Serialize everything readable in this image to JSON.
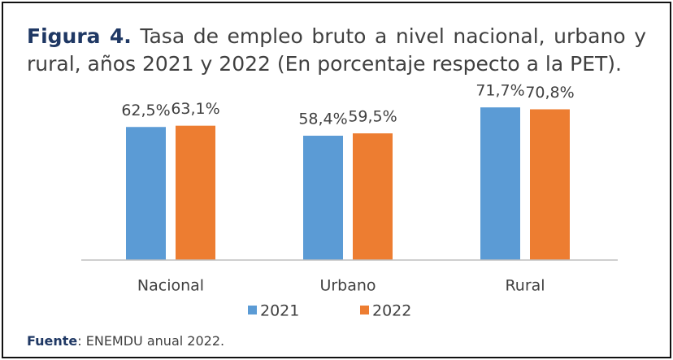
{
  "chart_data": {
    "type": "bar",
    "title_label": "Figura 4.",
    "title": "Tasa de empleo bruto a nivel nacional, urbano y rural, años 2021 y 2022 (En porcentaje respecto a la PET).",
    "categories": [
      "Nacional",
      "Urbano",
      "Rural"
    ],
    "series": [
      {
        "name": "2021",
        "color": "#5b9bd5",
        "values": [
          62.5,
          58.4,
          71.7
        ],
        "value_labels": [
          "62,5%",
          "58,4%",
          "71,7%"
        ]
      },
      {
        "name": "2022",
        "color": "#ed7d31",
        "values": [
          63.1,
          59.5,
          70.8
        ],
        "value_labels": [
          "63,1%",
          "59,5%",
          "70,8%"
        ]
      }
    ],
    "ylim": [
      0,
      80
    ],
    "legend": "bottom",
    "source_label": "Fuente",
    "source": ": ENEMDU anual 2022."
  }
}
